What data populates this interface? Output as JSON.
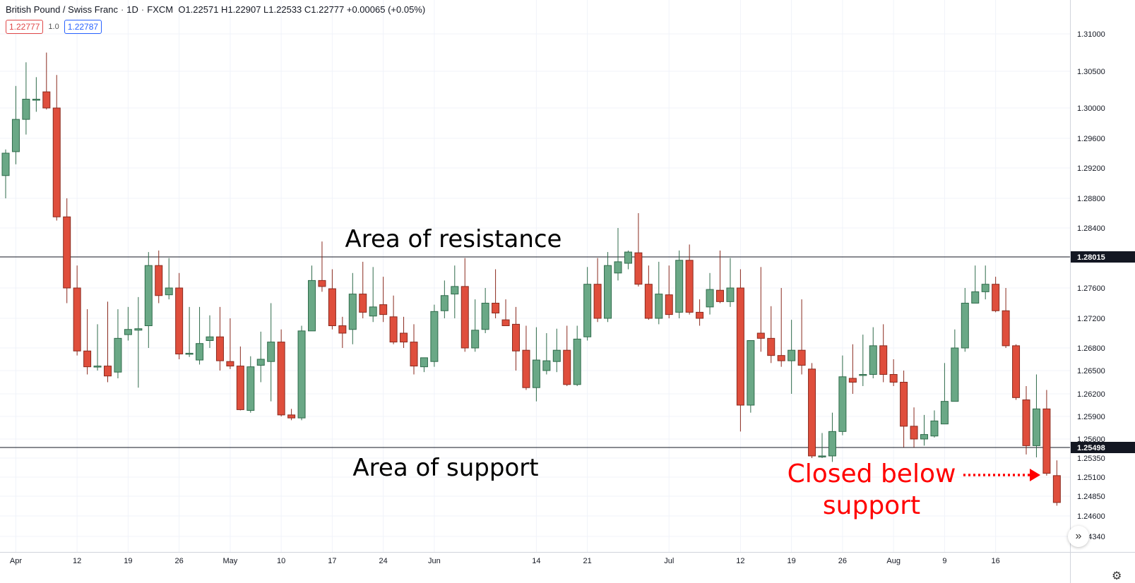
{
  "header": {
    "symbol": "British Pound / Swiss Franc",
    "interval": "1D",
    "exchange": "FXCM",
    "ohlc": "O1.22571 H1.22907 L1.22533 C1.22777 +0.00065 (+0.05%)",
    "sell_price": "1.22777",
    "qty": "1.0",
    "buy_price": "1.22787"
  },
  "controls": {
    "scroll_icon": "double-chevron-right",
    "settings_icon": "gear"
  },
  "colors": {
    "up": "#6aa886",
    "down": "#df4e3c",
    "wick": "#555555",
    "annotation": "#ff0000"
  },
  "annotations": {
    "resistance": "Area of resistance",
    "support": "Area of support",
    "breakdown_line1": "Closed below",
    "breakdown_line2": "support"
  },
  "chart_data": {
    "type": "candlestick",
    "y_ticks": [
      1.31,
      1.305,
      1.3,
      1.296,
      1.292,
      1.288,
      1.284,
      1.276,
      1.272,
      1.268,
      1.265,
      1.262,
      1.259,
      1.256,
      1.2535,
      1.251,
      1.2485,
      1.246,
      1.2434
    ],
    "y_tick_labels": [
      "1.31000",
      "1.30500",
      "1.30000",
      "1.29600",
      "1.29200",
      "1.28800",
      "1.28400",
      "1.27600",
      "1.27200",
      "1.26800",
      "1.26500",
      "1.26200",
      "1.25900",
      "1.25600",
      "1.25350",
      "1.25100",
      "1.24850",
      "1.24600",
      "1.24340"
    ],
    "x_ticks": [
      {
        "label": "Apr",
        "i": 1
      },
      {
        "label": "12",
        "i": 7
      },
      {
        "label": "19",
        "i": 12
      },
      {
        "label": "26",
        "i": 17
      },
      {
        "label": "May",
        "i": 22
      },
      {
        "label": "10",
        "i": 27
      },
      {
        "label": "17",
        "i": 32
      },
      {
        "label": "24",
        "i": 37
      },
      {
        "label": "Jun",
        "i": 42
      },
      {
        "label": "14",
        "i": 52
      },
      {
        "label": "21",
        "i": 57
      },
      {
        "label": "Jul",
        "i": 65
      },
      {
        "label": "12",
        "i": 72
      },
      {
        "label": "19",
        "i": 77
      },
      {
        "label": "26",
        "i": 82
      },
      {
        "label": "Aug",
        "i": 87
      },
      {
        "label": "9",
        "i": 92
      },
      {
        "label": "16",
        "i": 97
      }
    ],
    "horizontal_lines": [
      {
        "name": "resistance",
        "value": 1.28015,
        "label": "1.28015"
      },
      {
        "name": "support",
        "value": 1.25498,
        "label": "1.25498"
      }
    ],
    "candles": [
      [
        1.291,
        1.2945,
        1.288,
        1.294
      ],
      [
        1.2942,
        1.303,
        1.2925,
        1.2985
      ],
      [
        1.2985,
        1.3062,
        1.2965,
        1.3012
      ],
      [
        1.3012,
        1.3042,
        1.2995,
        1.3012
      ],
      [
        1.3022,
        1.3075,
        1.2998,
        1.3
      ],
      [
        1.3,
        1.3045,
        1.285,
        1.2855
      ],
      [
        1.2855,
        1.288,
        1.274,
        1.276
      ],
      [
        1.276,
        1.279,
        1.267,
        1.2676
      ],
      [
        1.2676,
        1.2732,
        1.2645,
        1.2655
      ],
      [
        1.2655,
        1.2712,
        1.265,
        1.2656
      ],
      [
        1.2656,
        1.2742,
        1.2635,
        1.2643
      ],
      [
        1.2648,
        1.2732,
        1.264,
        1.2693
      ],
      [
        1.2698,
        1.2735,
        1.269,
        1.2705
      ],
      [
        1.2704,
        1.2748,
        1.2628,
        1.2706
      ],
      [
        1.271,
        1.2808,
        1.268,
        1.279
      ],
      [
        1.279,
        1.281,
        1.274,
        1.275
      ],
      [
        1.2751,
        1.28,
        1.2745,
        1.276
      ],
      [
        1.276,
        1.278,
        1.2665,
        1.2672
      ],
      [
        1.2672,
        1.2735,
        1.2668,
        1.2673
      ],
      [
        1.2664,
        1.2735,
        1.2658,
        1.2686
      ],
      [
        1.269,
        1.2724,
        1.268,
        1.2695
      ],
      [
        1.2695,
        1.2735,
        1.265,
        1.2663
      ],
      [
        1.2662,
        1.272,
        1.2652,
        1.2656
      ],
      [
        1.2656,
        1.2682,
        1.2598,
        1.2599
      ],
      [
        1.2598,
        1.2669,
        1.2595,
        1.2655
      ],
      [
        1.2657,
        1.2702,
        1.2635,
        1.2665
      ],
      [
        1.2662,
        1.274,
        1.261,
        1.2688
      ],
      [
        1.2688,
        1.2705,
        1.259,
        1.2592
      ],
      [
        1.2592,
        1.26,
        1.2585,
        1.2588
      ],
      [
        1.2588,
        1.271,
        1.2585,
        1.2703
      ],
      [
        1.2703,
        1.279,
        1.2705,
        1.277
      ],
      [
        1.277,
        1.2822,
        1.2755,
        1.2762
      ],
      [
        1.2759,
        1.2785,
        1.2705,
        1.271
      ],
      [
        1.271,
        1.2722,
        1.268,
        1.27
      ],
      [
        1.2705,
        1.278,
        1.2685,
        1.2752
      ],
      [
        1.2752,
        1.2795,
        1.272,
        1.2728
      ],
      [
        1.2723,
        1.2788,
        1.2715,
        1.2735
      ],
      [
        1.2738,
        1.2775,
        1.2715,
        1.2725
      ],
      [
        1.2722,
        1.275,
        1.2685,
        1.2688
      ],
      [
        1.27,
        1.2722,
        1.268,
        1.2688
      ],
      [
        1.2688,
        1.2712,
        1.2645,
        1.2656
      ],
      [
        1.2655,
        1.2666,
        1.2648,
        1.2667
      ],
      [
        1.2662,
        1.2738,
        1.2655,
        1.2729
      ],
      [
        1.273,
        1.277,
        1.272,
        1.275
      ],
      [
        1.2752,
        1.279,
        1.272,
        1.2762
      ],
      [
        1.2762,
        1.28,
        1.2675,
        1.268
      ],
      [
        1.268,
        1.2745,
        1.2675,
        1.2704
      ],
      [
        1.2705,
        1.276,
        1.27,
        1.274
      ],
      [
        1.274,
        1.2785,
        1.272,
        1.2727
      ],
      [
        1.2718,
        1.2745,
        1.271,
        1.271
      ],
      [
        1.2712,
        1.2735,
        1.265,
        1.2676
      ],
      [
        1.2677,
        1.271,
        1.2625,
        1.2628
      ],
      [
        1.2628,
        1.2708,
        1.261,
        1.2664
      ],
      [
        1.265,
        1.27,
        1.2645,
        1.2663
      ],
      [
        1.2662,
        1.2706,
        1.2648,
        1.2677
      ],
      [
        1.2677,
        1.271,
        1.263,
        1.2632
      ],
      [
        1.2632,
        1.271,
        1.263,
        1.2692
      ],
      [
        1.2695,
        1.2788,
        1.269,
        1.2765
      ],
      [
        1.2765,
        1.28,
        1.2715,
        1.272
      ],
      [
        1.272,
        1.2808,
        1.2715,
        1.279
      ],
      [
        1.278,
        1.284,
        1.277,
        1.2795
      ],
      [
        1.2793,
        1.281,
        1.2785,
        1.2808
      ],
      [
        1.2807,
        1.286,
        1.2762,
        1.2765
      ],
      [
        1.2765,
        1.279,
        1.2718,
        1.272
      ],
      [
        1.272,
        1.2795,
        1.2712,
        1.2752
      ],
      [
        1.2751,
        1.279,
        1.272,
        1.2725
      ],
      [
        1.2728,
        1.281,
        1.272,
        1.2797
      ],
      [
        1.2797,
        1.2818,
        1.2725,
        1.2728
      ],
      [
        1.2728,
        1.2745,
        1.271,
        1.272
      ],
      [
        1.2735,
        1.278,
        1.2725,
        1.2758
      ],
      [
        1.2757,
        1.281,
        1.274,
        1.2742
      ],
      [
        1.2742,
        1.28,
        1.2735,
        1.276
      ],
      [
        1.276,
        1.2785,
        1.257,
        1.2605
      ],
      [
        1.2605,
        1.269,
        1.2595,
        1.269
      ],
      [
        1.27,
        1.2788,
        1.2675,
        1.2693
      ],
      [
        1.2693,
        1.2736,
        1.266,
        1.267
      ],
      [
        1.267,
        1.276,
        1.2655,
        1.2663
      ],
      [
        1.2663,
        1.2718,
        1.262,
        1.2677
      ],
      [
        1.2677,
        1.2745,
        1.2645,
        1.2657
      ],
      [
        1.2652,
        1.266,
        1.2535,
        1.2538
      ],
      [
        1.2538,
        1.2568,
        1.2535,
        1.2538
      ],
      [
        1.2538,
        1.2595,
        1.253,
        1.257
      ],
      [
        1.257,
        1.267,
        1.2565,
        1.2642
      ],
      [
        1.264,
        1.2685,
        1.262,
        1.2635
      ],
      [
        1.2645,
        1.2698,
        1.263,
        1.2645
      ],
      [
        1.2645,
        1.2708,
        1.264,
        1.2683
      ],
      [
        1.2683,
        1.2712,
        1.2635,
        1.2645
      ],
      [
        1.2645,
        1.2665,
        1.263,
        1.2635
      ],
      [
        1.2635,
        1.265,
        1.255,
        1.2577
      ],
      [
        1.2577,
        1.2602,
        1.255,
        1.256
      ],
      [
        1.256,
        1.2592,
        1.2552,
        1.2566
      ],
      [
        1.2564,
        1.2598,
        1.2562,
        1.2584
      ],
      [
        1.258,
        1.266,
        1.258,
        1.261
      ],
      [
        1.261,
        1.2705,
        1.261,
        1.268
      ],
      [
        1.268,
        1.276,
        1.2675,
        1.274
      ],
      [
        1.274,
        1.279,
        1.274,
        1.2755
      ],
      [
        1.2755,
        1.279,
        1.2745,
        1.2765
      ],
      [
        1.2765,
        1.2775,
        1.2728,
        1.273
      ],
      [
        1.273,
        1.276,
        1.268,
        1.2683
      ],
      [
        1.2683,
        1.2685,
        1.2612,
        1.2615
      ],
      [
        1.2612,
        1.263,
        1.254,
        1.2552
      ],
      [
        1.2552,
        1.2645,
        1.2536,
        1.26
      ],
      [
        1.26,
        1.2625,
        1.2512,
        1.2515
      ],
      [
        1.2512,
        1.2532,
        1.2473,
        1.2477
      ]
    ]
  }
}
